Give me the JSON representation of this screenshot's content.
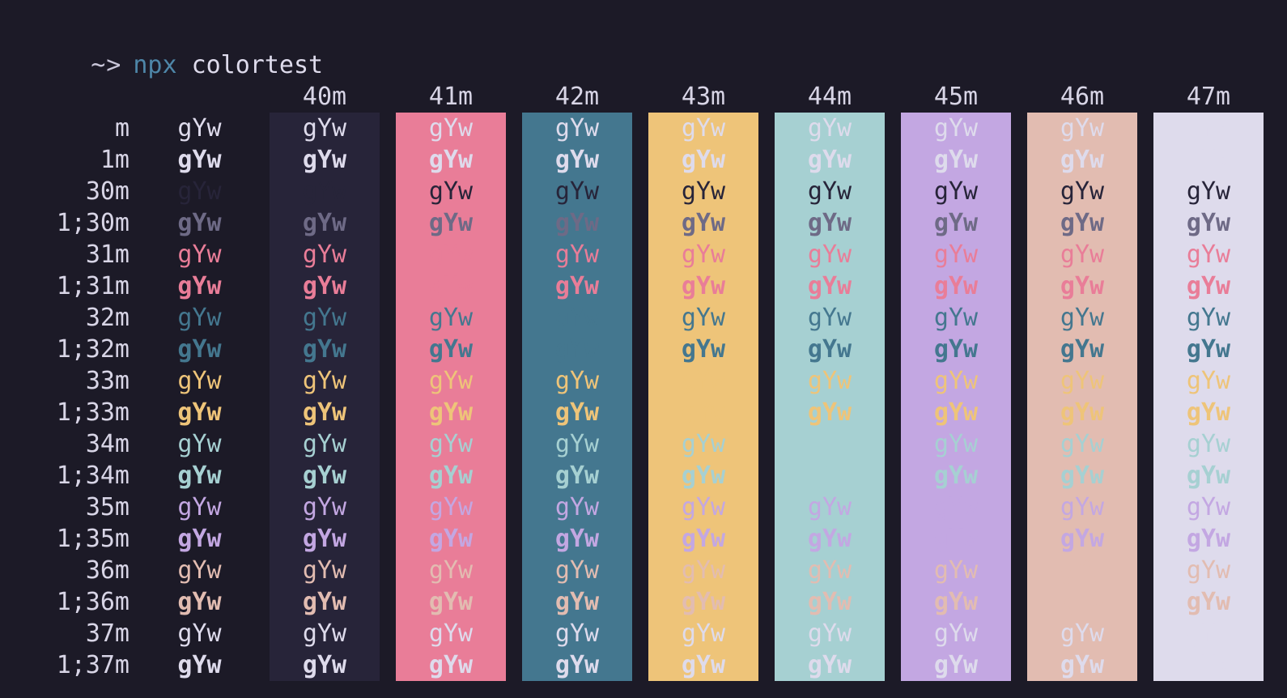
{
  "terminal": {
    "prompt_symbol": "~>",
    "command": "npx",
    "argument": "colortest"
  },
  "palette": {
    "background": "#1c1a27",
    "black": "#272439",
    "red": "#e97d98",
    "green": "#44778f",
    "yellow": "#eec479",
    "blue": "#a6d0d2",
    "magenta": "#c3a7e2",
    "cyan": "#e2bcb1",
    "white": "#dedbec",
    "bright_black": "#6e6a86",
    "header_text": "#d8d5e6",
    "label_text": "#d8d5e6",
    "prompt_color": "#c9c6d9",
    "command_color": "#4e86a8",
    "argument_color": "#dedbec"
  },
  "grid": {
    "cell_text": "gYw",
    "bg_columns": [
      {
        "label": "40m",
        "color": "black"
      },
      {
        "label": "41m",
        "color": "red"
      },
      {
        "label": "42m",
        "color": "green"
      },
      {
        "label": "43m",
        "color": "yellow"
      },
      {
        "label": "44m",
        "color": "blue"
      },
      {
        "label": "45m",
        "color": "magenta"
      },
      {
        "label": "46m",
        "color": "cyan"
      },
      {
        "label": "47m",
        "color": "white"
      }
    ],
    "rows": [
      {
        "label": "m",
        "fg": "white",
        "bold": false
      },
      {
        "label": "1m",
        "fg": "white",
        "bold": true
      },
      {
        "label": "30m",
        "fg": "black",
        "bold": false
      },
      {
        "label": "1;30m",
        "fg": "bright_black",
        "bold": true
      },
      {
        "label": "31m",
        "fg": "red",
        "bold": false
      },
      {
        "label": "1;31m",
        "fg": "red",
        "bold": true
      },
      {
        "label": "32m",
        "fg": "green",
        "bold": false
      },
      {
        "label": "1;32m",
        "fg": "green",
        "bold": true
      },
      {
        "label": "33m",
        "fg": "yellow",
        "bold": false
      },
      {
        "label": "1;33m",
        "fg": "yellow",
        "bold": true
      },
      {
        "label": "34m",
        "fg": "blue",
        "bold": false
      },
      {
        "label": "1;34m",
        "fg": "blue",
        "bold": true
      },
      {
        "label": "35m",
        "fg": "magenta",
        "bold": false
      },
      {
        "label": "1;35m",
        "fg": "magenta",
        "bold": true
      },
      {
        "label": "36m",
        "fg": "cyan",
        "bold": false
      },
      {
        "label": "1;36m",
        "fg": "cyan",
        "bold": true
      },
      {
        "label": "37m",
        "fg": "white",
        "bold": false
      },
      {
        "label": "1;37m",
        "fg": "white",
        "bold": true
      }
    ]
  }
}
